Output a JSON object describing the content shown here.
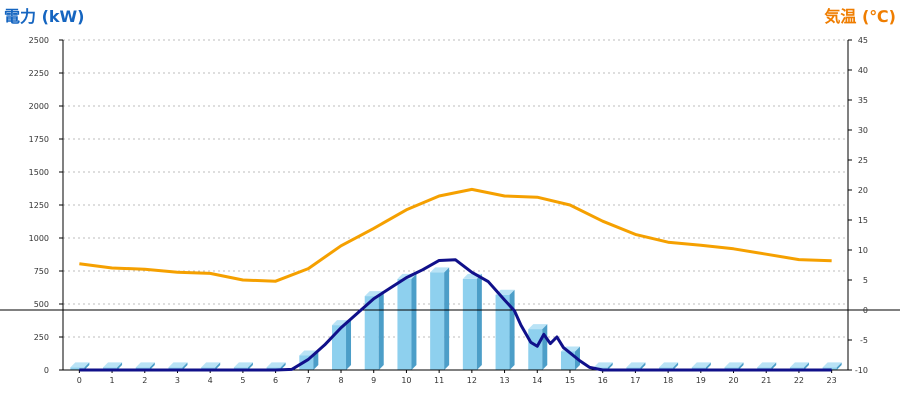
{
  "chart_data": {
    "type": "bar",
    "title_left": "電力 (kW)",
    "title_right": "気温 (℃)",
    "colors": {
      "left_title": "#1565c0",
      "right_title": "#ef7d00",
      "bar_front": "#8ed0ee",
      "bar_side": "#4c9ec8",
      "bar_top": "#b9e3f6",
      "power_line": "#10108a",
      "temp_line": "#f5a000",
      "grid": "#bdbdbd",
      "axis": "#000000"
    },
    "x_axis": {
      "ticks": [
        "0",
        "1",
        "2",
        "3",
        "4",
        "5",
        "6",
        "7",
        "8",
        "9",
        "10",
        "11",
        "12",
        "13",
        "14",
        "15",
        "16",
        "17",
        "18",
        "19",
        "20",
        "21",
        "22",
        "23"
      ]
    },
    "y_left": {
      "min": 0,
      "max": 2500,
      "ticks": [
        "0",
        "250",
        "500",
        "750",
        "1000",
        "1250",
        "1500",
        "1750",
        "2000",
        "2250",
        "2500"
      ]
    },
    "y_right": {
      "min": -10,
      "max": 45,
      "ticks": [
        "-10",
        "-5",
        "0",
        "5",
        "10",
        "15",
        "20",
        "25",
        "30",
        "35",
        "40",
        "45"
      ]
    },
    "reference_line": {
      "axis": "right",
      "value": 0
    },
    "bars": {
      "name": "power_hourly",
      "values": [
        20,
        20,
        20,
        20,
        20,
        20,
        20,
        110,
        340,
        560,
        690,
        740,
        690,
        570,
        310,
        140,
        20,
        20,
        20,
        20,
        20,
        20,
        20,
        20
      ]
    },
    "power_line": {
      "points": [
        [
          0,
          0
        ],
        [
          6,
          0
        ],
        [
          6.5,
          5
        ],
        [
          7,
          80
        ],
        [
          7.5,
          190
        ],
        [
          8,
          320
        ],
        [
          8.5,
          430
        ],
        [
          9,
          540
        ],
        [
          9.5,
          620
        ],
        [
          10,
          700
        ],
        [
          10.5,
          760
        ],
        [
          11,
          830
        ],
        [
          11.5,
          835
        ],
        [
          12,
          740
        ],
        [
          12.5,
          670
        ],
        [
          13,
          530
        ],
        [
          13.3,
          450
        ],
        [
          13.5,
          340
        ],
        [
          13.8,
          210
        ],
        [
          14,
          180
        ],
        [
          14.2,
          270
        ],
        [
          14.4,
          200
        ],
        [
          14.6,
          250
        ],
        [
          14.8,
          170
        ],
        [
          15,
          130
        ],
        [
          15.3,
          70
        ],
        [
          15.6,
          20
        ],
        [
          16,
          0
        ],
        [
          23,
          0
        ]
      ]
    },
    "temp_line": {
      "points": [
        [
          0,
          7.7
        ],
        [
          1,
          7
        ],
        [
          2,
          6.8
        ],
        [
          3,
          6.3
        ],
        [
          4,
          6.1
        ],
        [
          5,
          5
        ],
        [
          6,
          4.8
        ],
        [
          7,
          6.9
        ],
        [
          8,
          10.7
        ],
        [
          9,
          13.6
        ],
        [
          10,
          16.7
        ],
        [
          11,
          19
        ],
        [
          12,
          20.1
        ],
        [
          13,
          19
        ],
        [
          14,
          18.8
        ],
        [
          15,
          17.5
        ],
        [
          16,
          14.8
        ],
        [
          17,
          12.6
        ],
        [
          18,
          11.3
        ],
        [
          19,
          10.8
        ],
        [
          20,
          10.2
        ],
        [
          21,
          9.3
        ],
        [
          22,
          8.4
        ],
        [
          23,
          8.2
        ]
      ]
    }
  }
}
